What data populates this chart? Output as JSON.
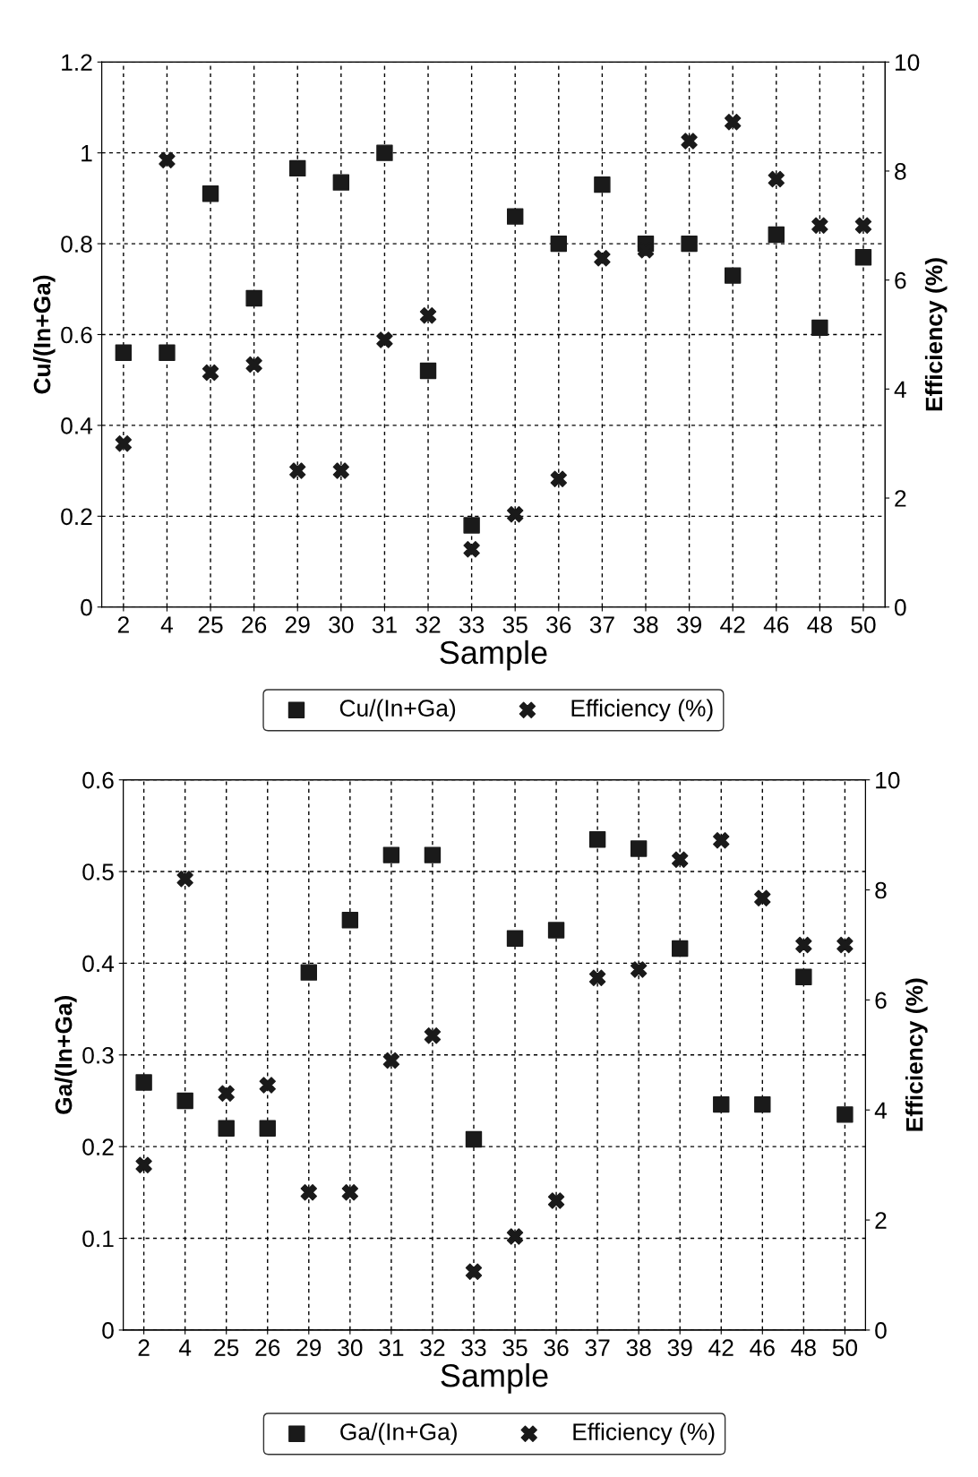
{
  "chart_data": [
    {
      "type": "scatter",
      "xlabel": "Sample",
      "ylabel": "Cu/(In+Ga)",
      "y2label": "Efficiency (%)",
      "categories": [
        "2",
        "4",
        "25",
        "26",
        "29",
        "30",
        "31",
        "32",
        "33",
        "35",
        "36",
        "37",
        "38",
        "39",
        "42",
        "46",
        "48",
        "50"
      ],
      "series": [
        {
          "name": "Cu/(In+Ga)",
          "color": "#1a1a1a",
          "marker": "square",
          "values": [
            0.56,
            0.56,
            0.91,
            0.68,
            0.966,
            0.935,
            1.0,
            0.52,
            0.18,
            0.86,
            0.8,
            0.93,
            0.8,
            0.8,
            0.73,
            0.82,
            0.615,
            0.77
          ]
        },
        {
          "name": "Efficiency (%)",
          "color": "#1a1a1a",
          "marker": "cross",
          "axis": "y2",
          "values": [
            3.0,
            8.2,
            4.3,
            4.45,
            2.5,
            2.5,
            4.9,
            5.35,
            1.06,
            1.7,
            2.35,
            6.4,
            6.55,
            8.55,
            8.9,
            7.85,
            7.0,
            7.0
          ]
        }
      ],
      "ylim": [
        0,
        1.2
      ],
      "yticks": [
        0,
        0.2,
        0.4,
        0.6,
        0.8,
        1,
        1.2
      ],
      "y2lim": [
        0,
        10
      ],
      "y2ticks": [
        0,
        2,
        4,
        6,
        8,
        10
      ],
      "grid": true,
      "legend": "bottom"
    },
    {
      "type": "scatter",
      "xlabel": "Sample",
      "ylabel": "Ga/(In+Ga)",
      "y2label": "Efficiency (%)",
      "categories": [
        "2",
        "4",
        "25",
        "26",
        "29",
        "30",
        "31",
        "32",
        "33",
        "35",
        "36",
        "37",
        "38",
        "39",
        "42",
        "46",
        "48",
        "50"
      ],
      "series": [
        {
          "name": "Ga/(In+Ga)",
          "color": "#1a1a1a",
          "marker": "square",
          "values": [
            0.27,
            0.25,
            0.22,
            0.22,
            0.39,
            0.447,
            0.518,
            0.518,
            0.208,
            0.427,
            0.436,
            0.535,
            0.525,
            0.416,
            0.246,
            0.246,
            0.385,
            0.235
          ]
        },
        {
          "name": "Efficiency (%)",
          "color": "#1a1a1a",
          "marker": "cross",
          "axis": "y2",
          "values": [
            3.0,
            8.2,
            4.3,
            4.45,
            2.5,
            2.5,
            4.9,
            5.35,
            1.06,
            1.7,
            2.35,
            6.4,
            6.55,
            8.55,
            8.9,
            7.85,
            7.0,
            7.0
          ]
        }
      ],
      "ylim": [
        0,
        0.6
      ],
      "yticks": [
        0,
        0.1,
        0.2,
        0.3,
        0.4,
        0.5,
        0.6
      ],
      "y2lim": [
        0,
        10
      ],
      "y2ticks": [
        0,
        2,
        4,
        6,
        8,
        10
      ],
      "grid": true,
      "legend": "bottom"
    }
  ]
}
